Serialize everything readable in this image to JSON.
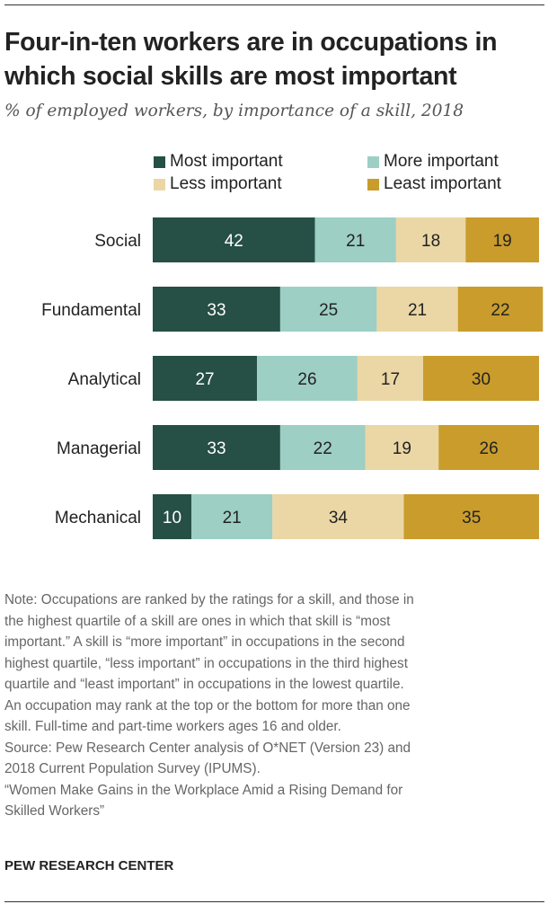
{
  "title": "Four-in-ten workers are in occupations in which social skills are most important",
  "subtitle": "% of employed workers, by importance of a skill, 2018",
  "chart_data": {
    "type": "bar",
    "orientation": "horizontal",
    "stacked": true,
    "categories": [
      "Social",
      "Fundamental",
      "Analytical",
      "Managerial",
      "Mechanical"
    ],
    "series": [
      {
        "name": "Most important",
        "color": "#264f45",
        "values": [
          42,
          33,
          27,
          33,
          10
        ]
      },
      {
        "name": "More important",
        "color": "#9dcfc4",
        "values": [
          21,
          25,
          26,
          22,
          21
        ]
      },
      {
        "name": "Less important",
        "color": "#ead7a5",
        "values": [
          18,
          21,
          17,
          19,
          34
        ]
      },
      {
        "name": "Least important",
        "color": "#c99c2c",
        "values": [
          19,
          22,
          30,
          26,
          35
        ]
      }
    ],
    "xlim": [
      0,
      100
    ],
    "legend": "top",
    "grid": false
  },
  "notes": [
    "Note: Occupations are ranked by the ratings for a skill, and those in",
    "the highest quartile of a skill are ones in which that skill is “most",
    "important.” A skill is “more important” in occupations in the second",
    "highest quartile, “less important” in occupations in the third highest",
    "quartile and “least important” in occupations in the lowest quartile.",
    "An occupation may rank at the top or the bottom for more than one",
    "skill. Full-time and part-time workers ages 16 and older.",
    "Source: Pew Research Center analysis of O*NET (Version 23) and",
    "2018 Current Population Survey (IPUMS).",
    "“Women Make Gains in the Workplace Amid a Rising Demand for",
    "Skilled Workers”"
  ],
  "credit": "PEW RESEARCH CENTER"
}
